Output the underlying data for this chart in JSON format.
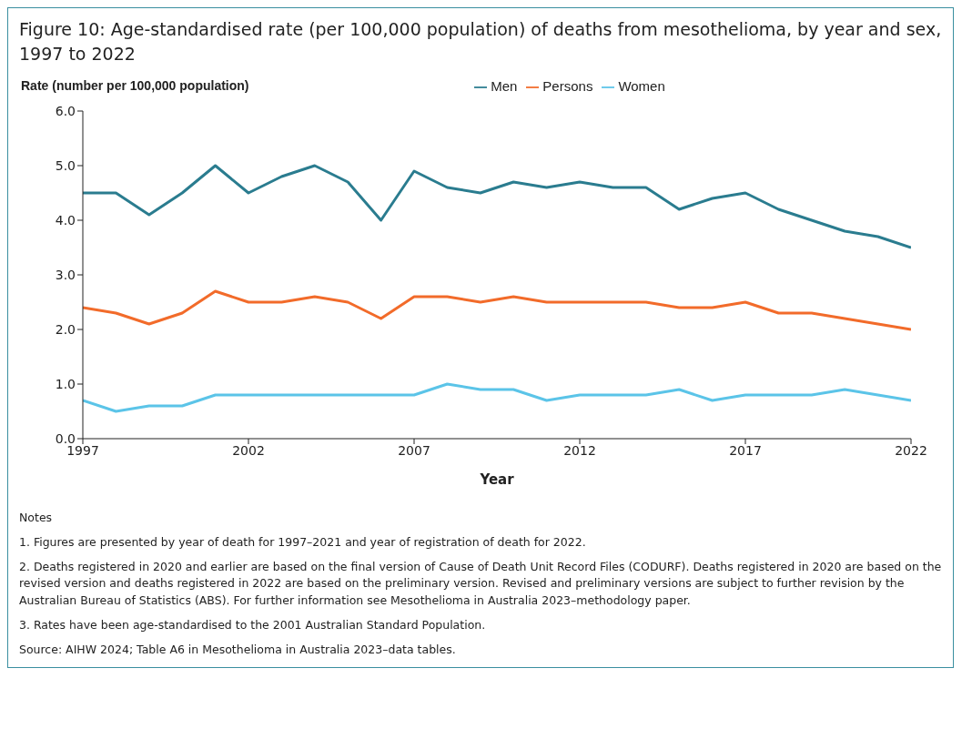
{
  "chart_data": {
    "type": "line",
    "title": "Figure 10: Age-standardised rate (per 100,000 population) of deaths from mesothelioma, by year and sex, 1997 to 2022",
    "ylabel": "Rate (number per 100,000 population)",
    "xlabel": "Year",
    "x": [
      1997,
      1998,
      1999,
      2000,
      2001,
      2002,
      2003,
      2004,
      2005,
      2006,
      2007,
      2008,
      2009,
      2010,
      2011,
      2012,
      2013,
      2014,
      2015,
      2016,
      2017,
      2018,
      2019,
      2020,
      2021,
      2022
    ],
    "series": [
      {
        "name": "Men",
        "color": "#2a7c8f",
        "values": [
          4.5,
          4.5,
          4.1,
          4.5,
          5.0,
          4.5,
          4.8,
          5.0,
          4.7,
          4.0,
          4.9,
          4.6,
          4.5,
          4.7,
          4.6,
          4.7,
          4.6,
          4.6,
          4.2,
          4.4,
          4.5,
          4.2,
          4.0,
          3.8,
          3.7,
          3.5
        ]
      },
      {
        "name": "Women",
        "color": "#5bc4e8",
        "values": [
          0.7,
          0.5,
          0.6,
          0.6,
          0.8,
          0.8,
          0.8,
          0.8,
          0.8,
          0.8,
          0.8,
          1.0,
          0.9,
          0.9,
          0.7,
          0.8,
          0.8,
          0.8,
          0.9,
          0.7,
          0.8,
          0.8,
          0.8,
          0.9,
          0.8,
          0.7
        ]
      },
      {
        "name": "Persons",
        "color": "#f26b2a",
        "values": [
          2.4,
          2.3,
          2.1,
          2.3,
          2.7,
          2.5,
          2.5,
          2.6,
          2.5,
          2.2,
          2.6,
          2.6,
          2.5,
          2.6,
          2.5,
          2.5,
          2.5,
          2.5,
          2.4,
          2.4,
          2.5,
          2.3,
          2.3,
          2.2,
          2.1,
          2.0
        ]
      }
    ],
    "xlim": [
      1997,
      2022
    ],
    "xticks": [
      1997,
      2002,
      2007,
      2012,
      2017,
      2022
    ],
    "ylim": [
      0,
      6
    ],
    "yticks": [
      {
        "value": 0,
        "label": "0.0"
      },
      {
        "value": 1,
        "label": "1.0"
      },
      {
        "value": 2,
        "label": "2.0"
      },
      {
        "value": 3,
        "label": "3.0"
      },
      {
        "value": 4,
        "label": "4.0"
      },
      {
        "value": 5,
        "label": "5.0"
      },
      {
        "value": 6,
        "label": "6.0"
      }
    ],
    "grid": false,
    "legend": "top",
    "marker": "none",
    "line_style": "solid",
    "annotations": [
      "Notes",
      "1. Figures are presented by year of death for 1997–2021 and year of registration of death for 2022.",
      "2. Deaths registered in 2020 and earlier are based on the final version of Cause of Death Unit Record Files (CODURF). Deaths registered in 2020 are based on the revised version and deaths registered in 2022 are based on the preliminary version. Revised and preliminary versions are subject to further revision by the Australian Bureau of Statistics (ABS). For further information see Mesothelioma in Australia 2023–methodology paper.",
      "3. Rates have been age-standardised to the 2001 Australian Standard Population.",
      "Source: AIHW 2024; Table A6 in Mesothelioma in Australia 2023–data tables."
    ]
  }
}
